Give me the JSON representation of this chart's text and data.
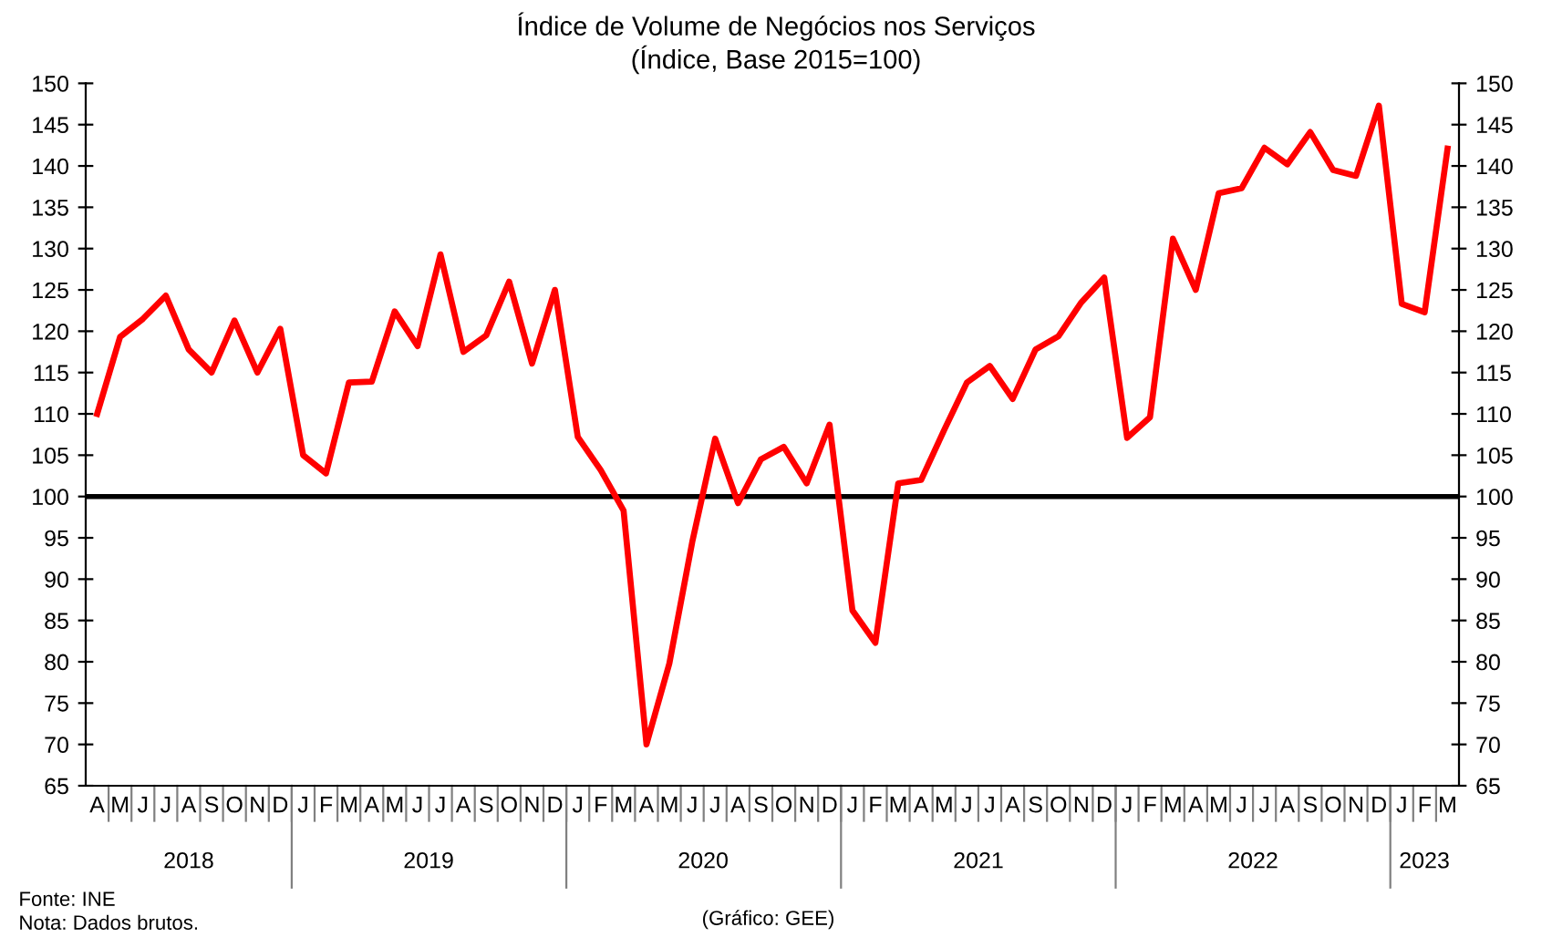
{
  "chart_data": {
    "type": "line",
    "title": "Índice de Volume de Negócios nos Serviços",
    "subtitle": "(Índice, Base 2015=100)",
    "categories": [
      "A",
      "M",
      "J",
      "J",
      "A",
      "S",
      "O",
      "N",
      "D",
      "J",
      "F",
      "M",
      "A",
      "M",
      "J",
      "J",
      "A",
      "S",
      "O",
      "N",
      "D",
      "J",
      "F",
      "M",
      "A",
      "M",
      "J",
      "J",
      "A",
      "S",
      "O",
      "N",
      "D",
      "J",
      "F",
      "M",
      "A",
      "M",
      "J",
      "J",
      "A",
      "S",
      "O",
      "N",
      "D",
      "J",
      "F",
      "M",
      "A",
      "M",
      "J",
      "J",
      "A",
      "S",
      "O",
      "N",
      "D",
      "J",
      "F",
      "M"
    ],
    "series": [
      {
        "color": "#ff0000",
        "values": [
          110,
          119.3,
          121.5,
          124.3,
          117.8,
          115,
          121.3,
          115,
          120.3,
          105,
          102.8,
          113.8,
          113.9,
          122.4,
          118.2,
          129.3,
          117.5,
          119.5,
          126,
          116.1,
          125,
          107.2,
          103.2,
          98.3,
          70,
          79.8,
          94.5,
          107,
          99.2,
          104.5,
          106,
          101.6,
          108.7,
          86.2,
          82.3,
          101.6,
          102,
          108,
          113.8,
          115.8,
          111.8,
          117.8,
          119.4,
          123.5,
          126.5,
          107.1,
          109.6,
          131.2,
          125,
          136.7,
          137.3,
          142.2,
          140.2,
          144.1,
          139.5,
          138.8,
          147.3,
          123.3,
          122.3,
          142.1
        ]
      }
    ],
    "x2lim": [
      "2018-03-16",
      "2023-03-16"
    ],
    "x2ticks": [
      {
        "value": "2018-07-31",
        "label": "2018"
      },
      {
        "value": "2019-06-15",
        "label": "2019"
      },
      {
        "value": "2020-06-14",
        "label": "2020"
      },
      {
        "value": "2021-06-15",
        "label": "2021"
      },
      {
        "value": "2022-06-15",
        "label": "2022"
      },
      {
        "value": "2023-01-29",
        "label": "2023"
      }
    ],
    "ylim": [
      65,
      150
    ],
    "yticks": [
      65,
      70,
      75,
      80,
      85,
      90,
      95,
      100,
      105,
      110,
      115,
      120,
      125,
      130,
      135,
      140,
      145,
      150
    ],
    "y2lim": [
      65,
      150
    ],
    "y2ticks": [
      65,
      70,
      75,
      80,
      85,
      90,
      95,
      100,
      105,
      110,
      115,
      120,
      125,
      130,
      135,
      140,
      145,
      150
    ],
    "ref_lines": [
      {
        "axis": "y",
        "value": 100,
        "color": "#000000"
      }
    ],
    "grid": false,
    "legend": false,
    "marker": "none",
    "line_style": "solid",
    "annotations": [
      "Fonte: INE",
      "Nota: Dados brutos.",
      "(Gráfico: GEE)"
    ]
  }
}
